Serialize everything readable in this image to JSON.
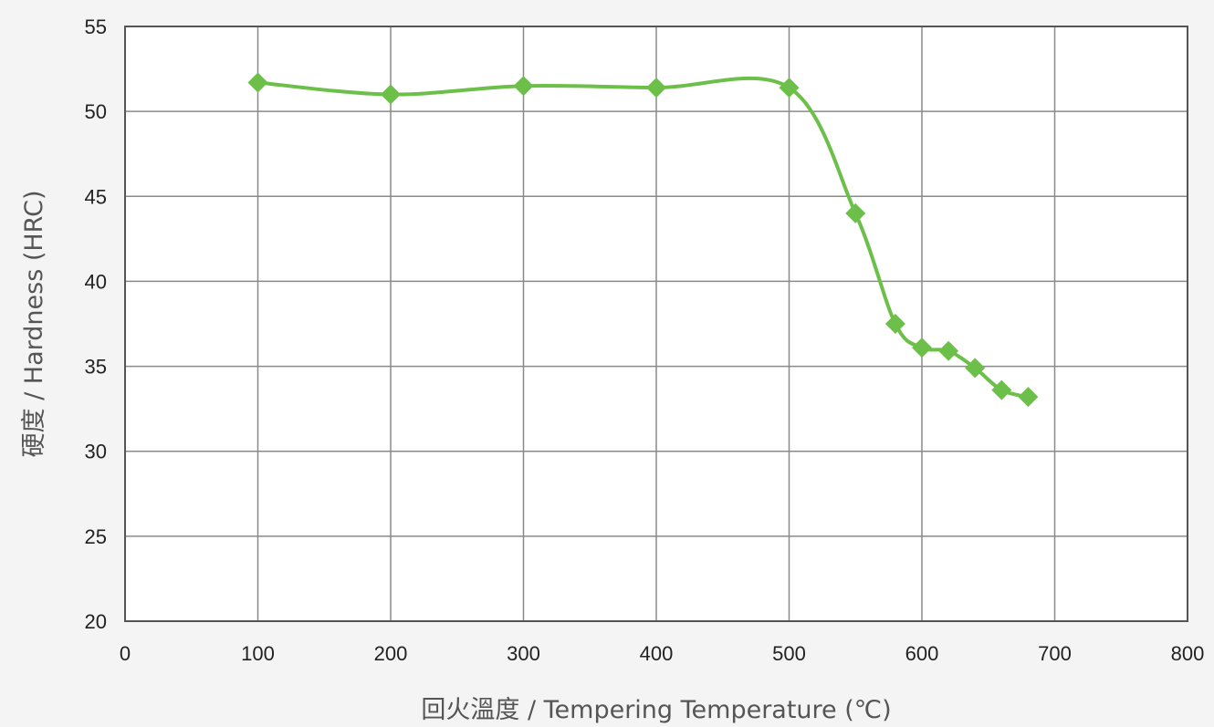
{
  "chart_data": {
    "type": "line",
    "title": "",
    "xlabel": "回火溫度 / Tempering Temperature (℃)",
    "ylabel": "硬度 / Hardness (HRC)",
    "xlim": [
      0,
      800
    ],
    "ylim": [
      20,
      55
    ],
    "x_ticks": [
      "0",
      "100",
      "200",
      "300",
      "400",
      "500",
      "600",
      "700",
      "800"
    ],
    "y_ticks": [
      "20",
      "25",
      "30",
      "35",
      "40",
      "45",
      "50",
      "55"
    ],
    "grid": true,
    "legend": "none",
    "series": [
      {
        "color": "#6cc04a",
        "marker": "diamond",
        "x": [
          100,
          200,
          300,
          400,
          500,
          550,
          580,
          600,
          620,
          640,
          660,
          680
        ],
        "y": [
          51.7,
          51.0,
          51.5,
          51.4,
          51.4,
          44.0,
          37.5,
          36.1,
          35.9,
          34.9,
          33.6,
          33.2
        ]
      }
    ],
    "colors": {
      "plot_background": "#ffffff",
      "grid": "#8a8a8a",
      "line": "#6cc04a"
    }
  }
}
